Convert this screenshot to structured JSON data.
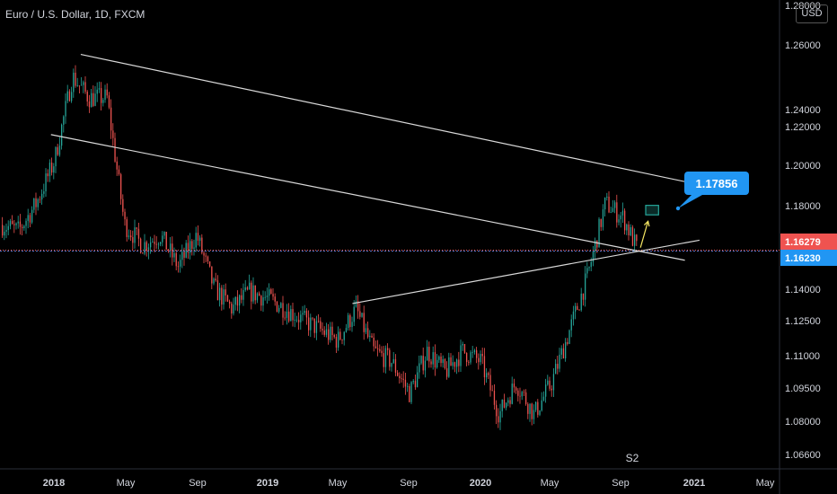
{
  "header": {
    "title": "Euro / U.S. Dollar, 1D, FXCM",
    "currency_badge": "USD"
  },
  "colors": {
    "background": "#000000",
    "up_candle": "#26a69a",
    "down_candle": "#ef5350",
    "trendline": "#d9d9d9",
    "price_line": "#ef5350",
    "level_line": "#5b7bd5",
    "callout": "#2196f3",
    "target_box": "#26a69a",
    "arrow": "#f5e663",
    "axis_text": "#d1d4dc"
  },
  "chart_data": {
    "type": "candlestick",
    "symbol": "Euro / U.S. Dollar",
    "timeframe": "1D",
    "source": "FXCM",
    "x_tick_labels": [
      "2018",
      "May",
      "Sep",
      "2019",
      "May",
      "Sep",
      "2020",
      "May",
      "Sep",
      "2021",
      "May"
    ],
    "y_tick_labels": [
      "1.26000",
      "1.24000",
      "1.22000",
      "1.20000",
      "1.18000",
      "1.14000",
      "1.12500",
      "1.11000",
      "1.09500",
      "1.08000",
      "1.06600"
    ],
    "y_top_partial_label": "1.28000",
    "ylim": [
      1.062,
      1.278
    ],
    "price_path": [
      {
        "x": "2017-10",
        "y": 1.175
      },
      {
        "x": "2017-11",
        "y": 1.172
      },
      {
        "x": "2017-12",
        "y": 1.185
      },
      {
        "x": "2018-01",
        "y": 1.205
      },
      {
        "x": "2018-02",
        "y": 1.245
      },
      {
        "x": "2018-03",
        "y": 1.235
      },
      {
        "x": "2018-04",
        "y": 1.235
      },
      {
        "x": "2018-05",
        "y": 1.175
      },
      {
        "x": "2018-06",
        "y": 1.165
      },
      {
        "x": "2018-07",
        "y": 1.17
      },
      {
        "x": "2018-08",
        "y": 1.155
      },
      {
        "x": "2018-09",
        "y": 1.17
      },
      {
        "x": "2018-10",
        "y": 1.145
      },
      {
        "x": "2018-11",
        "y": 1.135
      },
      {
        "x": "2018-12",
        "y": 1.143
      },
      {
        "x": "2019-01",
        "y": 1.14
      },
      {
        "x": "2019-02",
        "y": 1.135
      },
      {
        "x": "2019-03",
        "y": 1.13
      },
      {
        "x": "2019-04",
        "y": 1.125
      },
      {
        "x": "2019-05",
        "y": 1.12
      },
      {
        "x": "2019-06",
        "y": 1.135
      },
      {
        "x": "2019-07",
        "y": 1.115
      },
      {
        "x": "2019-08",
        "y": 1.11
      },
      {
        "x": "2019-09",
        "y": 1.095
      },
      {
        "x": "2019-10",
        "y": 1.115
      },
      {
        "x": "2019-11",
        "y": 1.105
      },
      {
        "x": "2019-12",
        "y": 1.115
      },
      {
        "x": "2020-01",
        "y": 1.11
      },
      {
        "x": "2020-02",
        "y": 1.085
      },
      {
        "x": "2020-03",
        "y": 1.1
      },
      {
        "x": "2020-04",
        "y": 1.085
      },
      {
        "x": "2020-05",
        "y": 1.1
      },
      {
        "x": "2020-06",
        "y": 1.125
      },
      {
        "x": "2020-07",
        "y": 1.15
      },
      {
        "x": "2020-08",
        "y": 1.185
      },
      {
        "x": "2020-09",
        "y": 1.178
      },
      {
        "x": "2020-09-25",
        "y": 1.1628
      }
    ],
    "trendlines": [
      {
        "name": "upper-channel-line",
        "from": {
          "x": "2018-02-16",
          "y": 1.2555
        },
        "to": {
          "x": "2020-12-20",
          "y": 1.195
        }
      },
      {
        "name": "lower-channel-line",
        "from": {
          "x": "2017-12-27",
          "y": 1.2175
        },
        "to": {
          "x": "2020-12-16",
          "y": 1.158
        }
      },
      {
        "name": "rising-support-line",
        "from": {
          "x": "2019-05-27",
          "y": 1.1375
        },
        "to": {
          "x": "2021-01-10",
          "y": 1.1675
        }
      }
    ],
    "horizontal_lines": [
      {
        "name": "last-price-line",
        "y": 1.16279
      },
      {
        "name": "level-line",
        "y": 1.1623
      }
    ],
    "target_zone": {
      "x_start": "2020-10-10",
      "x_end": "2020-11-01",
      "y_low": 1.1795,
      "y_high": 1.184
    },
    "projection_arrow": {
      "from": {
        "x": "2020-10-01",
        "y": 1.164
      },
      "to": {
        "x": "2020-10-14",
        "y": 1.1765
      }
    },
    "callout": {
      "label": "1.17856",
      "anchor": {
        "x": "2020-11-01",
        "y": 1.1785
      }
    },
    "price_badges": [
      {
        "name": "last-price-badge",
        "label": "1.16279",
        "y": 1.16279
      },
      {
        "name": "level-badge",
        "label": "1.16230",
        "y": 1.1623
      }
    ],
    "annotation": {
      "label": "S2",
      "x": "2020-09-15"
    },
    "grid": false,
    "legend": "none"
  }
}
